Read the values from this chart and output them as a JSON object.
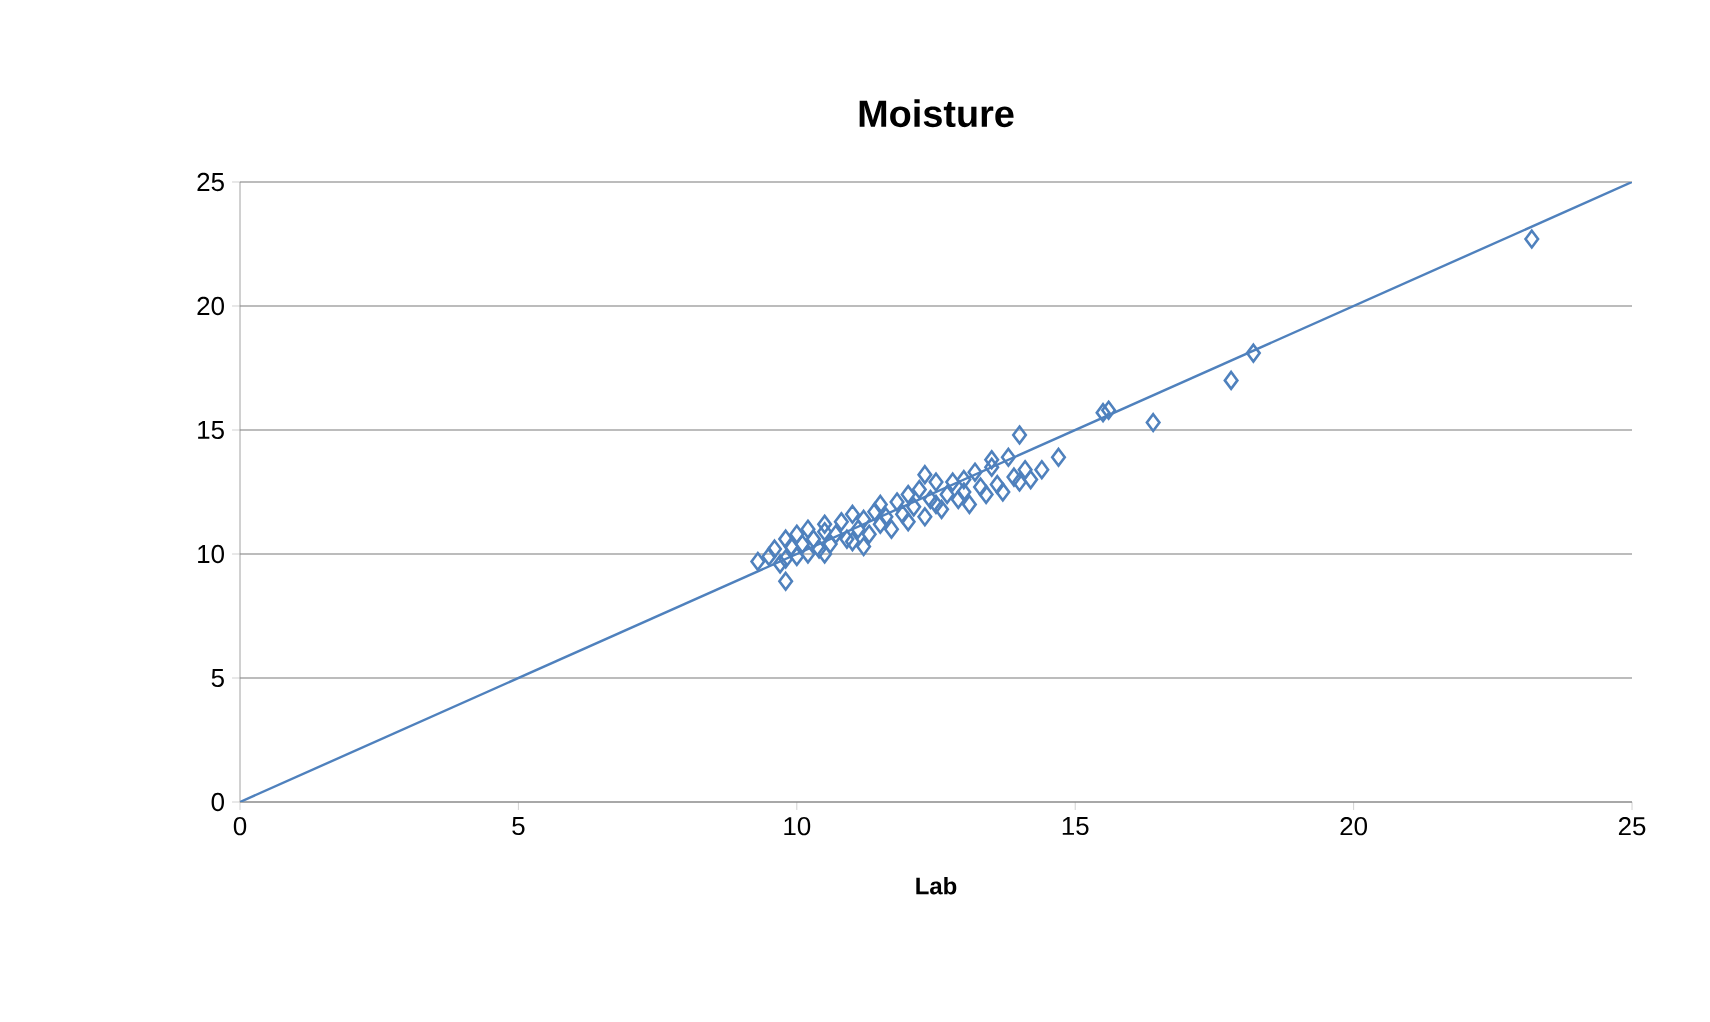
{
  "chart_data": {
    "type": "scatter",
    "title": "Moisture",
    "xlabel": "Lab",
    "series": [
      {
        "color": "#4f81bd",
        "marker": "diamond",
        "x": [
          9.3,
          9.5,
          9.6,
          9.7,
          9.8,
          9.8,
          9.9,
          10.0,
          10.0,
          10.1,
          10.2,
          10.2,
          10.3,
          10.4,
          10.5,
          10.5,
          10.6,
          10.7,
          10.8,
          10.9,
          11.0,
          11.0,
          11.1,
          11.2,
          11.3,
          11.4,
          11.5,
          11.5,
          11.6,
          11.7,
          11.8,
          11.9,
          12.0,
          12.0,
          12.1,
          12.2,
          12.3,
          12.4,
          12.5,
          12.5,
          12.6,
          12.7,
          12.8,
          12.9,
          13.0,
          13.0,
          13.1,
          13.2,
          13.3,
          13.4,
          13.5,
          13.6,
          13.7,
          13.8,
          13.9,
          14.0,
          14.1,
          14.2,
          14.4,
          14.7,
          14.0,
          15.5,
          15.6,
          16.4,
          17.8,
          18.2,
          23.2,
          9.8,
          12.3,
          10.5,
          11.2,
          13.5
        ],
        "values": [
          9.7,
          9.9,
          10.2,
          9.6,
          8.9,
          10.6,
          10.3,
          9.9,
          10.8,
          10.4,
          10.0,
          11.0,
          10.6,
          10.2,
          10.9,
          11.2,
          10.4,
          10.8,
          11.3,
          10.6,
          10.5,
          11.6,
          11.0,
          11.4,
          10.8,
          11.7,
          11.2,
          12.0,
          11.5,
          11.0,
          12.1,
          11.6,
          11.3,
          12.4,
          11.9,
          12.6,
          11.5,
          12.2,
          12.0,
          12.9,
          11.8,
          12.4,
          12.9,
          12.2,
          13.0,
          12.5,
          12.0,
          13.3,
          12.7,
          12.4,
          13.5,
          12.8,
          12.5,
          13.9,
          13.1,
          12.9,
          13.4,
          13.0,
          13.4,
          13.9,
          14.8,
          15.7,
          15.8,
          15.3,
          17.0,
          18.1,
          22.7,
          9.8,
          13.2,
          10.0,
          10.3,
          13.8
        ]
      },
      {
        "type": "line",
        "color": "#4f81bd",
        "marker": "none",
        "x": [
          0,
          25
        ],
        "values": [
          0,
          25
        ]
      }
    ],
    "xlim": [
      0,
      25
    ],
    "ylim": [
      0,
      25
    ],
    "xticks": [
      0,
      5,
      10,
      15,
      20,
      25
    ],
    "yticks": [
      0,
      5,
      10,
      15,
      20,
      25
    ],
    "grid": "y"
  }
}
